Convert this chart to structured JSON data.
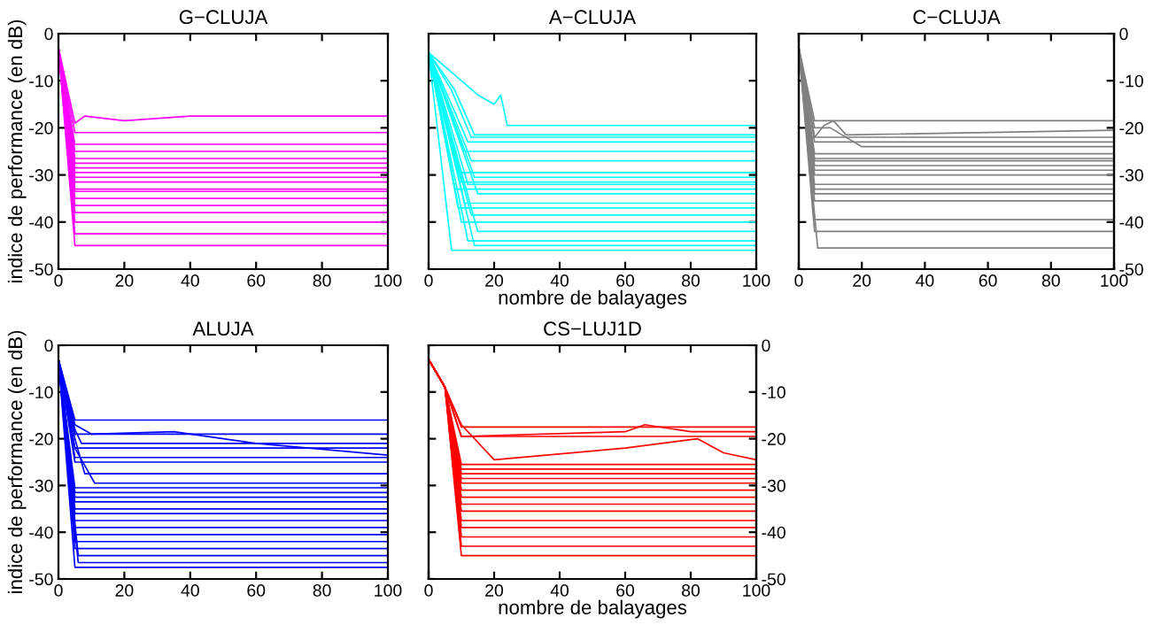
{
  "chart_data": [
    {
      "type": "line",
      "title": "G−CLUJA",
      "ylabel": "indice de performance (en dB)",
      "xlim": [
        0,
        100
      ],
      "xticks": [
        0,
        20,
        40,
        60,
        80,
        100
      ],
      "ylim": [
        -50,
        0
      ],
      "yticks": [
        -50,
        -40,
        -30,
        -20,
        -10,
        0
      ],
      "grid": false,
      "legend": false,
      "marker": "none",
      "line_style": "solid",
      "series": [
        {
          "color": "#ff00ff",
          "x": [
            0,
            5,
            8,
            20,
            40,
            100
          ],
          "values": [
            -3,
            -19,
            -17.5,
            -18.5,
            -17.5,
            -17.5
          ]
        },
        {
          "color": "#ff00ff",
          "x": [
            0,
            5,
            100
          ],
          "values": [
            -3,
            -21,
            -21
          ]
        },
        {
          "color": "#ff00ff",
          "x": [
            0,
            5,
            100
          ],
          "values": [
            -3,
            -23.5,
            -23.5
          ]
        },
        {
          "color": "#ff00ff",
          "x": [
            0,
            5,
            100
          ],
          "values": [
            -3,
            -25,
            -25
          ]
        },
        {
          "color": "#ff00ff",
          "x": [
            0,
            5,
            100
          ],
          "values": [
            -3,
            -26.5,
            -26.5
          ]
        },
        {
          "color": "#ff00ff",
          "x": [
            0,
            5,
            100
          ],
          "values": [
            -3,
            -27.5,
            -27.5
          ]
        },
        {
          "color": "#ff00ff",
          "x": [
            0,
            5,
            100
          ],
          "values": [
            -3,
            -28.5,
            -28.5
          ]
        },
        {
          "color": "#ff00ff",
          "x": [
            0,
            5,
            100
          ],
          "values": [
            -3,
            -29.5,
            -29.5
          ]
        },
        {
          "color": "#ff00ff",
          "x": [
            0,
            5,
            100
          ],
          "values": [
            -3,
            -30.5,
            -30.5
          ]
        },
        {
          "color": "#ff00ff",
          "x": [
            0,
            5,
            100
          ],
          "values": [
            -3,
            -31.5,
            -31.5
          ]
        },
        {
          "color": "#ff00ff",
          "x": [
            0,
            5,
            100
          ],
          "values": [
            -3,
            -33,
            -33
          ]
        },
        {
          "color": "#ff00ff",
          "x": [
            0,
            5,
            100
          ],
          "values": [
            -3,
            -33.5,
            -33.5
          ]
        },
        {
          "color": "#ff00ff",
          "x": [
            0,
            5,
            100
          ],
          "values": [
            -3,
            -35,
            -35
          ]
        },
        {
          "color": "#ff00ff",
          "x": [
            0,
            5,
            100
          ],
          "values": [
            -3,
            -36.5,
            -36.5
          ]
        },
        {
          "color": "#ff00ff",
          "x": [
            0,
            5,
            100
          ],
          "values": [
            -3,
            -38,
            -38
          ]
        },
        {
          "color": "#ff00ff",
          "x": [
            0,
            5,
            100
          ],
          "values": [
            -3,
            -40,
            -40
          ]
        },
        {
          "color": "#ff00ff",
          "x": [
            0,
            5,
            100
          ],
          "values": [
            -3,
            -42.5,
            -42.5
          ]
        },
        {
          "color": "#ff00ff",
          "x": [
            0,
            5,
            100
          ],
          "values": [
            -3,
            -45,
            -45
          ]
        }
      ]
    },
    {
      "type": "line",
      "title": "A−CLUJA",
      "xlabel": "nombre de balayages",
      "xlim": [
        0,
        100
      ],
      "xticks": [
        0,
        20,
        40,
        60,
        80,
        100
      ],
      "ylim": [
        -50,
        0
      ],
      "yticks": [
        -50,
        -40,
        -30,
        -20,
        -10,
        0
      ],
      "tick_labels": "x",
      "grid": false,
      "legend": false,
      "marker": "none",
      "line_style": "solid",
      "series": [
        {
          "color": "#00ffff",
          "x": [
            0,
            10,
            15,
            20,
            22,
            24,
            100
          ],
          "values": [
            -4,
            -10,
            -13,
            -15,
            -13,
            -19.5,
            -19.5
          ]
        },
        {
          "color": "#00ffff",
          "x": [
            0,
            8,
            14,
            100
          ],
          "values": [
            -4,
            -12,
            -21.5,
            -21.5
          ]
        },
        {
          "color": "#00ffff",
          "x": [
            0,
            7,
            13,
            100
          ],
          "values": [
            -4,
            -12,
            -22,
            -22
          ]
        },
        {
          "color": "#00ffff",
          "x": [
            0,
            12,
            100
          ],
          "values": [
            -4,
            -23,
            -23
          ]
        },
        {
          "color": "#00ffff",
          "x": [
            0,
            11,
            100
          ],
          "values": [
            -4,
            -25,
            -25
          ]
        },
        {
          "color": "#00ffff",
          "x": [
            0,
            13,
            100
          ],
          "values": [
            -4,
            -27,
            -27
          ]
        },
        {
          "color": "#00ffff",
          "x": [
            0,
            9,
            100
          ],
          "values": [
            -4,
            -29.5,
            -29.5
          ]
        },
        {
          "color": "#00ffff",
          "x": [
            0,
            14,
            100
          ],
          "values": [
            -4,
            -30.5,
            -30.5
          ]
        },
        {
          "color": "#00ffff",
          "x": [
            0,
            10,
            100
          ],
          "values": [
            -4,
            -31.5,
            -31.5
          ]
        },
        {
          "color": "#00ffff",
          "x": [
            0,
            12,
            100
          ],
          "values": [
            -4,
            -32,
            -32
          ]
        },
        {
          "color": "#00ffff",
          "x": [
            0,
            8,
            100
          ],
          "values": [
            -4,
            -33,
            -33
          ]
        },
        {
          "color": "#00ffff",
          "x": [
            0,
            15,
            100
          ],
          "values": [
            -4,
            -34,
            -34
          ]
        },
        {
          "color": "#00ffff",
          "x": [
            0,
            11,
            100
          ],
          "values": [
            -4,
            -36,
            -36
          ]
        },
        {
          "color": "#00ffff",
          "x": [
            0,
            9,
            100
          ],
          "values": [
            -4,
            -37,
            -37
          ]
        },
        {
          "color": "#00ffff",
          "x": [
            0,
            13,
            100
          ],
          "values": [
            -4,
            -38.5,
            -38.5
          ]
        },
        {
          "color": "#00ffff",
          "x": [
            0,
            10,
            100
          ],
          "values": [
            -4,
            -40,
            -40
          ]
        },
        {
          "color": "#00ffff",
          "x": [
            0,
            15,
            100
          ],
          "values": [
            -4,
            -42,
            -42
          ]
        },
        {
          "color": "#00ffff",
          "x": [
            0,
            12,
            100
          ],
          "values": [
            -4,
            -44,
            -44
          ]
        },
        {
          "color": "#00ffff",
          "x": [
            0,
            14,
            100
          ],
          "values": [
            -4,
            -45,
            -45
          ]
        },
        {
          "color": "#00ffff",
          "x": [
            0,
            7,
            100
          ],
          "values": [
            -4,
            -46,
            -46
          ]
        }
      ]
    },
    {
      "type": "line",
      "title": "C−CLUJA",
      "xlim": [
        0,
        100
      ],
      "xticks": [
        0,
        20,
        40,
        60,
        80,
        100
      ],
      "y2lim": [
        -50,
        0
      ],
      "y2ticks": [
        -50,
        -40,
        -30,
        -20,
        -10,
        0
      ],
      "grid": false,
      "legend": false,
      "marker": "none",
      "line_style": "solid",
      "series": [
        {
          "axis": "y2",
          "color": "#808080",
          "x": [
            0,
            5,
            100
          ],
          "values": [
            -3,
            -18.5,
            -18.5
          ]
        },
        {
          "axis": "y2",
          "color": "#808080",
          "x": [
            0,
            5,
            8,
            11,
            15,
            100
          ],
          "values": [
            -3,
            -22,
            -19.5,
            -18.5,
            -21.5,
            -20.5
          ]
        },
        {
          "axis": "y2",
          "color": "#808080",
          "x": [
            0,
            5,
            100
          ],
          "values": [
            -3,
            -22,
            -22
          ]
        },
        {
          "axis": "y2",
          "color": "#808080",
          "x": [
            0,
            5,
            10,
            20,
            100
          ],
          "values": [
            -3,
            -20,
            -20,
            -24,
            -24
          ]
        },
        {
          "axis": "y2",
          "color": "#808080",
          "x": [
            0,
            5,
            100
          ],
          "values": [
            -3,
            -23,
            -23
          ]
        },
        {
          "axis": "y2",
          "color": "#808080",
          "x": [
            0,
            5,
            100
          ],
          "values": [
            -3,
            -25.5,
            -25.5
          ]
        },
        {
          "axis": "y2",
          "color": "#808080",
          "x": [
            0,
            5,
            100
          ],
          "values": [
            -3,
            -26.5,
            -26.5
          ]
        },
        {
          "axis": "y2",
          "color": "#808080",
          "x": [
            0,
            5,
            100
          ],
          "values": [
            -3,
            -27,
            -27
          ]
        },
        {
          "axis": "y2",
          "color": "#808080",
          "x": [
            0,
            5,
            100
          ],
          "values": [
            -3,
            -28,
            -28
          ]
        },
        {
          "axis": "y2",
          "color": "#808080",
          "x": [
            0,
            5,
            100
          ],
          "values": [
            -3,
            -29,
            -29
          ]
        },
        {
          "axis": "y2",
          "color": "#808080",
          "x": [
            0,
            5,
            100
          ],
          "values": [
            -3,
            -30,
            -30
          ]
        },
        {
          "axis": "y2",
          "color": "#808080",
          "x": [
            0,
            5,
            100
          ],
          "values": [
            -3,
            -32,
            -32
          ]
        },
        {
          "axis": "y2",
          "color": "#808080",
          "x": [
            0,
            5,
            100
          ],
          "values": [
            -3,
            -33,
            -33
          ]
        },
        {
          "axis": "y2",
          "color": "#808080",
          "x": [
            0,
            5,
            100
          ],
          "values": [
            -3,
            -34,
            -34
          ]
        },
        {
          "axis": "y2",
          "color": "#808080",
          "x": [
            0,
            5,
            100
          ],
          "values": [
            -3,
            -35.5,
            -35.5
          ]
        },
        {
          "axis": "y2",
          "color": "#808080",
          "x": [
            0,
            5,
            100
          ],
          "values": [
            -3,
            -39.5,
            -39.5
          ]
        },
        {
          "axis": "y2",
          "color": "#808080",
          "x": [
            0,
            5,
            100
          ],
          "values": [
            -3,
            -42,
            -42
          ]
        },
        {
          "axis": "y2",
          "color": "#808080",
          "x": [
            0,
            6,
            100
          ],
          "values": [
            -3,
            -45.5,
            -45.5
          ]
        }
      ]
    },
    {
      "type": "line",
      "title": "ALUJA",
      "ylabel": "indice de performance (en dB)",
      "xlim": [
        0,
        100
      ],
      "xticks": [
        0,
        20,
        40,
        60,
        80,
        100
      ],
      "ylim": [
        -50,
        0
      ],
      "yticks": [
        -50,
        -40,
        -30,
        -20,
        -10,
        0
      ],
      "grid": false,
      "legend": false,
      "marker": "none",
      "line_style": "solid",
      "series": [
        {
          "color": "#0000ff",
          "x": [
            0,
            5,
            100
          ],
          "values": [
            -3,
            -16,
            -16
          ]
        },
        {
          "color": "#0000ff",
          "x": [
            0,
            5,
            10,
            35,
            60,
            100
          ],
          "values": [
            -3,
            -17,
            -19,
            -18.5,
            -21,
            -23.5
          ]
        },
        {
          "color": "#0000ff",
          "x": [
            0,
            5,
            100
          ],
          "values": [
            -3,
            -19,
            -19
          ]
        },
        {
          "color": "#0000ff",
          "x": [
            0,
            5,
            7,
            100
          ],
          "values": [
            -3,
            -18,
            -21,
            -21
          ]
        },
        {
          "color": "#0000ff",
          "x": [
            0,
            5,
            100
          ],
          "values": [
            -3,
            -22,
            -22
          ]
        },
        {
          "color": "#0000ff",
          "x": [
            0,
            5,
            100
          ],
          "values": [
            -3,
            -24,
            -24
          ]
        },
        {
          "color": "#0000ff",
          "x": [
            0,
            5,
            100
          ],
          "values": [
            -3,
            -25,
            -25
          ]
        },
        {
          "color": "#0000ff",
          "x": [
            0,
            5,
            8,
            100
          ],
          "values": [
            -3,
            -20,
            -27.5,
            -27.5
          ]
        },
        {
          "color": "#0000ff",
          "x": [
            0,
            5,
            11,
            100
          ],
          "values": [
            -3,
            -22,
            -29.5,
            -29.5
          ]
        },
        {
          "color": "#0000ff",
          "x": [
            0,
            5,
            100
          ],
          "values": [
            -3,
            -30.5,
            -30.5
          ]
        },
        {
          "color": "#0000ff",
          "x": [
            0,
            5,
            100
          ],
          "values": [
            -3,
            -31.5,
            -31.5
          ]
        },
        {
          "color": "#0000ff",
          "x": [
            0,
            5,
            100
          ],
          "values": [
            -3,
            -32.5,
            -32.5
          ]
        },
        {
          "color": "#0000ff",
          "x": [
            0,
            5,
            100
          ],
          "values": [
            -3,
            -33.5,
            -33.5
          ]
        },
        {
          "color": "#0000ff",
          "x": [
            0,
            5,
            100
          ],
          "values": [
            -3,
            -35,
            -35
          ]
        },
        {
          "color": "#0000ff",
          "x": [
            0,
            5,
            100
          ],
          "values": [
            -3,
            -36,
            -36
          ]
        },
        {
          "color": "#0000ff",
          "x": [
            0,
            5,
            100
          ],
          "values": [
            -3,
            -37.5,
            -37.5
          ]
        },
        {
          "color": "#0000ff",
          "x": [
            0,
            5,
            100
          ],
          "values": [
            -3,
            -39,
            -39
          ]
        },
        {
          "color": "#0000ff",
          "x": [
            0,
            5,
            100
          ],
          "values": [
            -3,
            -40.5,
            -40.5
          ]
        },
        {
          "color": "#0000ff",
          "x": [
            0,
            5,
            100
          ],
          "values": [
            -3,
            -42,
            -42
          ]
        },
        {
          "color": "#0000ff",
          "x": [
            0,
            5,
            100
          ],
          "values": [
            -3,
            -43.5,
            -43.5
          ]
        },
        {
          "color": "#0000ff",
          "x": [
            0,
            6,
            100
          ],
          "values": [
            -3,
            -45,
            -45
          ]
        },
        {
          "color": "#0000ff",
          "x": [
            0,
            6,
            100
          ],
          "values": [
            -3,
            -46.5,
            -46.5
          ]
        },
        {
          "color": "#0000ff",
          "x": [
            0,
            5,
            100
          ],
          "values": [
            -3,
            -47.5,
            -47.5
          ]
        }
      ]
    },
    {
      "type": "line",
      "title": "CS−LUJ1D",
      "xlabel": "nombre de balayages",
      "xlim": [
        0,
        100
      ],
      "xticks": [
        0,
        20,
        40,
        60,
        80,
        100
      ],
      "y2lim": [
        -50,
        0
      ],
      "y2ticks": [
        -50,
        -40,
        -30,
        -20,
        -10,
        0
      ],
      "grid": false,
      "legend": false,
      "marker": "none",
      "line_style": "solid",
      "series": [
        {
          "axis": "y2",
          "color": "#ff0000",
          "x": [
            0,
            5,
            10,
            100
          ],
          "values": [
            -3,
            -9,
            -17.5,
            -17.5
          ]
        },
        {
          "axis": "y2",
          "color": "#ff0000",
          "x": [
            0,
            5,
            10,
            60,
            66,
            80,
            100
          ],
          "values": [
            -3,
            -9,
            -19.5,
            -18.5,
            -17,
            -18.5,
            -18.5
          ]
        },
        {
          "axis": "y2",
          "color": "#ff0000",
          "x": [
            0,
            5,
            10,
            100
          ],
          "values": [
            -3,
            -9,
            -19.5,
            -19.5
          ]
        },
        {
          "axis": "y2",
          "color": "#ff0000",
          "x": [
            0,
            5,
            10,
            20,
            60,
            82,
            90,
            100
          ],
          "values": [
            -3,
            -9,
            -17,
            -24.5,
            -22,
            -20,
            -23,
            -24.5
          ]
        },
        {
          "axis": "y2",
          "color": "#ff0000",
          "x": [
            0,
            5,
            10,
            100
          ],
          "values": [
            -3,
            -9,
            -25.5,
            -25.5
          ]
        },
        {
          "axis": "y2",
          "color": "#ff0000",
          "x": [
            0,
            5,
            10,
            100
          ],
          "values": [
            -3,
            -9,
            -26.5,
            -26.5
          ]
        },
        {
          "axis": "y2",
          "color": "#ff0000",
          "x": [
            0,
            5,
            10,
            100
          ],
          "values": [
            -3,
            -9,
            -27.5,
            -27.5
          ]
        },
        {
          "axis": "y2",
          "color": "#ff0000",
          "x": [
            0,
            5,
            10,
            100
          ],
          "values": [
            -3,
            -9,
            -28.5,
            -28.5
          ]
        },
        {
          "axis": "y2",
          "color": "#ff0000",
          "x": [
            0,
            5,
            10,
            100
          ],
          "values": [
            -3,
            -9,
            -29.5,
            -29.5
          ]
        },
        {
          "axis": "y2",
          "color": "#ff0000",
          "x": [
            0,
            5,
            10,
            100
          ],
          "values": [
            -3,
            -9,
            -31,
            -31
          ]
        },
        {
          "axis": "y2",
          "color": "#ff0000",
          "x": [
            0,
            5,
            10,
            100
          ],
          "values": [
            -3,
            -9,
            -32.5,
            -32.5
          ]
        },
        {
          "axis": "y2",
          "color": "#ff0000",
          "x": [
            0,
            5,
            10,
            100
          ],
          "values": [
            -3,
            -9,
            -34,
            -34
          ]
        },
        {
          "axis": "y2",
          "color": "#ff0000",
          "x": [
            0,
            5,
            10,
            100
          ],
          "values": [
            -3,
            -9,
            -35.5,
            -35.5
          ]
        },
        {
          "axis": "y2",
          "color": "#ff0000",
          "x": [
            0,
            5,
            10,
            100
          ],
          "values": [
            -3,
            -9,
            -37.5,
            -37.5
          ]
        },
        {
          "axis": "y2",
          "color": "#ff0000",
          "x": [
            0,
            5,
            10,
            100
          ],
          "values": [
            -3,
            -9,
            -39,
            -39
          ]
        },
        {
          "axis": "y2",
          "color": "#ff0000",
          "x": [
            0,
            5,
            10,
            100
          ],
          "values": [
            -3,
            -9,
            -41,
            -41
          ]
        },
        {
          "axis": "y2",
          "color": "#ff0000",
          "x": [
            0,
            5,
            10,
            100
          ],
          "values": [
            -3,
            -9,
            -43,
            -43
          ]
        },
        {
          "axis": "y2",
          "color": "#ff0000",
          "x": [
            0,
            5,
            10,
            100
          ],
          "values": [
            -3,
            -9,
            -45,
            -45
          ]
        }
      ]
    }
  ]
}
